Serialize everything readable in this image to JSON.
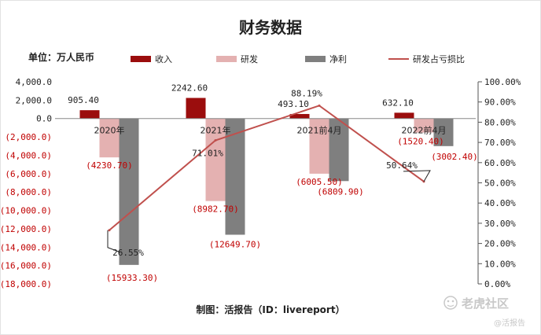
{
  "chart_data": {
    "type": "bar",
    "title": "财务数据",
    "unit_label": "单位：万人民币",
    "categories": [
      "2020年",
      "2021年",
      "2021前4月",
      "2022前4月"
    ],
    "series": [
      {
        "name": "收入",
        "kind": "bar",
        "axis": "left",
        "color": "#9b0d0d",
        "values": [
          905.4,
          2242.6,
          493.1,
          632.1
        ],
        "labels": [
          "905.40",
          "2242.60",
          "493.10",
          "632.10"
        ]
      },
      {
        "name": "研发",
        "kind": "bar",
        "axis": "left",
        "color": "#e4b1b1",
        "values": [
          -4230.7,
          -8982.7,
          -6005.5,
          -1520.4
        ],
        "labels": [
          "(4230.70)",
          "(8982.70)",
          "(6005.50)",
          "(1520.40)"
        ]
      },
      {
        "name": "净利",
        "kind": "bar",
        "axis": "left",
        "color": "#7f7f7f",
        "values": [
          -15933.3,
          -12649.7,
          -6809.9,
          -3002.4
        ],
        "labels": [
          "(15933.30)",
          "(12649.70)",
          "(6809.90)",
          "(3002.40)"
        ]
      },
      {
        "name": "研发占亏损比",
        "kind": "line",
        "axis": "right",
        "color": "#c0504d",
        "values": [
          26.55,
          71.01,
          88.19,
          50.64
        ],
        "labels": [
          "26.55%",
          "71.01%",
          "88.19%",
          "50.64%"
        ]
      }
    ],
    "y_left": {
      "ylim": [
        -18000,
        4000
      ],
      "ticks": [
        4000,
        2000,
        0,
        -2000,
        -4000,
        -6000,
        -8000,
        -10000,
        -12000,
        -14000,
        -16000,
        -18000
      ],
      "tick_labels": [
        "4,000.0",
        "2,000.0",
        "0.0",
        "(2,000.0)",
        "(4,000.0)",
        "(6,000.0)",
        "(8,000.0)",
        "(10,000.0)",
        "(12,000.0)",
        "(14,000.0)",
        "(16,000.0)",
        "(18,000.0)"
      ]
    },
    "y_right": {
      "ylim": [
        0,
        100
      ],
      "ticks": [
        100,
        90,
        80,
        70,
        60,
        50,
        40,
        30,
        20,
        10,
        0
      ],
      "tick_labels": [
        "100.00%",
        "90.00%",
        "80.00%",
        "70.00%",
        "60.00%",
        "50.00%",
        "40.00%",
        "30.00%",
        "20.00%",
        "10.00%",
        "0.00%"
      ]
    },
    "grid": false,
    "legend_position": "top",
    "footer": "制图：活报告（ID：livereport）"
  },
  "colors": {
    "negative_label": "#c00000",
    "positive_label": "#222222"
  },
  "watermark": {
    "brand": "老虎社区",
    "handle": "@活报告"
  }
}
